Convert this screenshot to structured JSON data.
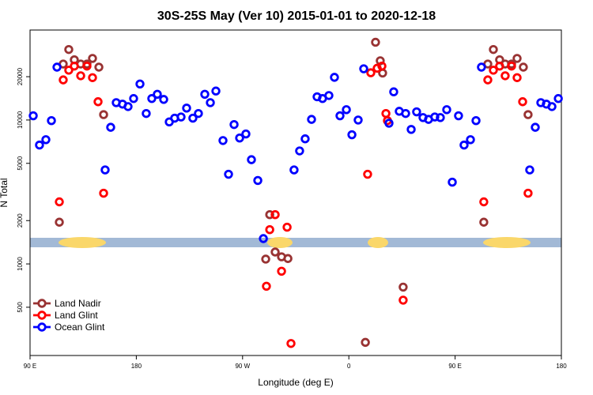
{
  "chart_data": {
    "type": "scatter",
    "title": "30S-25S May (Ver 10)   2015-01-01 to 2020-12-18",
    "xlabel": "Longitude (deg E)",
    "ylabel": "N Total",
    "xlim": [
      90,
      540
    ],
    "xticks": [
      {
        "value": 90,
        "label": "90 E"
      },
      {
        "value": 180,
        "label": "180"
      },
      {
        "value": 270,
        "label": "90 W"
      },
      {
        "value": 360,
        "label": "0"
      },
      {
        "value": 450,
        "label": "90 E"
      },
      {
        "value": 540,
        "label": "180"
      }
    ],
    "ylim": [
      231,
      42200
    ],
    "yticks": [
      500,
      1000,
      2000,
      5000,
      10000,
      20000
    ],
    "log_y": true,
    "legend": "lower left",
    "series": [
      {
        "name": "Land Nadir",
        "color": "#993333",
        "x": [
          114.8,
          118.1,
          122.8,
          127.5,
          132.9,
          138.2,
          142.9,
          148.3,
          152.3,
          289.6,
          293.0,
          297.6,
          303.0,
          308.4,
          374.0,
          382.6,
          386.6,
          388.6,
          406.0,
          474.3,
          477.7,
          482.4,
          487.7,
          492.4,
          497.8,
          502.5,
          507.8,
          511.8
        ],
        "values": [
          1950,
          24500,
          30900,
          26200,
          24500,
          24500,
          26800,
          23300,
          10900,
          1080,
          2200,
          1210,
          1120,
          1090,
          285,
          34700,
          25800,
          21200,
          690,
          1950,
          24500,
          30900,
          26200,
          24500,
          24500,
          26800,
          23300,
          10900
        ]
      },
      {
        "name": "Land Glint",
        "color": "#ff0000",
        "x": [
          114.8,
          118.1,
          122.8,
          127.5,
          132.9,
          138.2,
          142.9,
          147.6,
          152.3,
          290.2,
          293.0,
          297.6,
          303.0,
          307.7,
          311.0,
          375.9,
          378.6,
          384.0,
          388.0,
          391.4,
          392.7,
          406.0,
          474.3,
          477.7,
          482.4,
          487.7,
          492.4,
          497.8,
          502.5,
          507.2,
          511.8
        ],
        "values": [
          2700,
          19000,
          22200,
          23700,
          20300,
          23700,
          19700,
          13400,
          3100,
          700,
          1730,
          2200,
          890,
          1800,
          280,
          4200,
          21300,
          22900,
          23700,
          11100,
          9900,
          560,
          2700,
          19000,
          22200,
          23700,
          20300,
          23700,
          19700,
          13400,
          3100
        ]
      },
      {
        "name": "Ocean Glint",
        "color": "#0000ff",
        "x": [
          92.7,
          98.0,
          103.4,
          108.1,
          112.8,
          153.6,
          158.3,
          163.0,
          168.3,
          173.0,
          177.7,
          183.1,
          188.4,
          193.1,
          197.8,
          203.2,
          207.9,
          212.5,
          217.9,
          222.6,
          227.9,
          232.6,
          238.0,
          242.7,
          247.4,
          253.4,
          258.1,
          262.8,
          267.5,
          272.8,
          277.5,
          282.9,
          287.6,
          313.6,
          318.3,
          323.0,
          328.4,
          333.1,
          337.7,
          343.1,
          347.8,
          352.5,
          357.9,
          362.6,
          367.9,
          372.6,
          394.0,
          398.0,
          402.7,
          408.1,
          412.8,
          417.4,
          422.8,
          427.5,
          432.8,
          437.5,
          442.9,
          447.6,
          452.9,
          457.6,
          463.0,
          467.7,
          472.3,
          513.2,
          517.9,
          522.6,
          527.3,
          532.0,
          537.4
        ],
        "values": [
          10700,
          6700,
          7300,
          9900,
          23300,
          4500,
          8900,
          13200,
          12900,
          12400,
          14100,
          17800,
          11100,
          14100,
          15100,
          13900,
          9700,
          10300,
          10500,
          12100,
          10300,
          11100,
          15100,
          13200,
          15900,
          7200,
          4200,
          9300,
          7500,
          8000,
          5300,
          3800,
          1500,
          4500,
          6100,
          7400,
          10100,
          14500,
          14100,
          14800,
          19800,
          10700,
          11800,
          7900,
          10000,
          22700,
          9500,
          15700,
          11500,
          11100,
          8600,
          11400,
          10400,
          10100,
          10500,
          10400,
          11800,
          3700,
          10700,
          6700,
          7300,
          9900,
          23300,
          4500,
          8900,
          13200,
          12900,
          12400,
          14100
        ]
      }
    ]
  }
}
